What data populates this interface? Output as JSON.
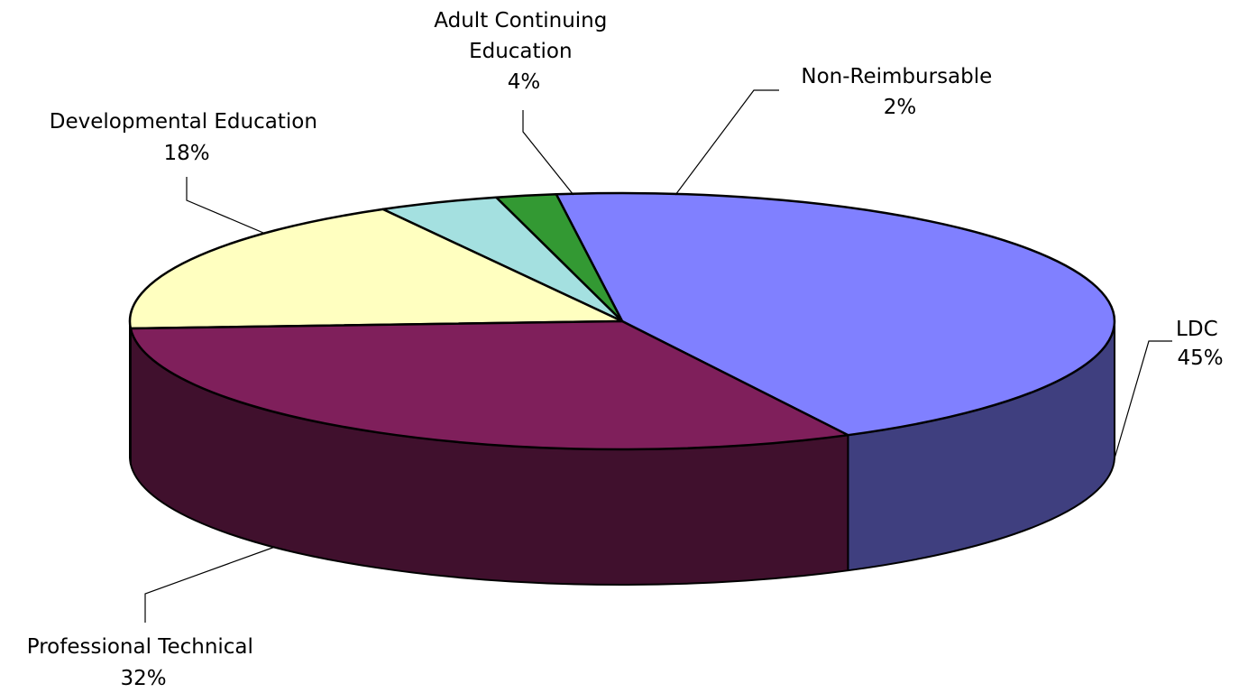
{
  "chart_data": {
    "type": "pie",
    "style": "3d",
    "title": "",
    "categories": [
      "LDC",
      "Non-Reimbursable",
      "Adult Continuing Education",
      "Developmental Education",
      "Professional Technical"
    ],
    "values": [
      45,
      2,
      4,
      18,
      32
    ],
    "unit": "%",
    "labels": [
      {
        "lines": [
          "LDC"
        ],
        "percent": "45%"
      },
      {
        "lines": [
          "Non-Reimbursable"
        ],
        "percent": "2%"
      },
      {
        "lines": [
          "Adult Continuing",
          "Education"
        ],
        "percent": "4%"
      },
      {
        "lines": [
          "Developmental Education"
        ],
        "percent": "18%"
      },
      {
        "lines": [
          "Professional Technical"
        ],
        "percent": "32%"
      }
    ],
    "colors": [
      "#8080FF",
      "#339933",
      "#A4E0E0",
      "#FFFFC0",
      "#7F1F5B"
    ],
    "side_colors": [
      "#3F3F7F",
      "#1A4D1A",
      "#527070",
      "#808060",
      "#40102D"
    ],
    "legend": "none",
    "data_labels": "outside with leader lines"
  }
}
